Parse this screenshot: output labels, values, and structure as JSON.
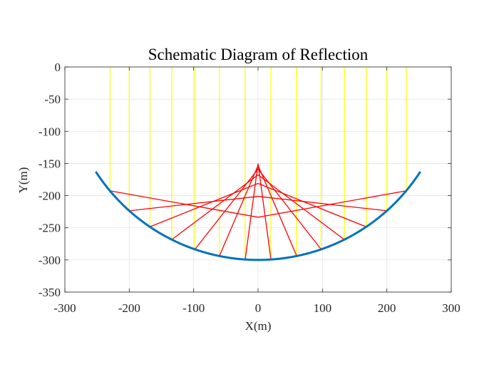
{
  "chart_data": {
    "type": "line",
    "title": "Schematic Diagram of Reflection",
    "xlabel": "X(m)",
    "ylabel": "Y(m)",
    "xlim": [
      -300,
      300
    ],
    "ylim": [
      -350,
      0
    ],
    "xticks": [
      -300,
      -200,
      -100,
      0,
      100,
      200,
      300
    ],
    "yticks": [
      0,
      -50,
      -100,
      -150,
      -200,
      -250,
      -300,
      -350
    ],
    "grid": true,
    "mirror": {
      "shape": "circular-arc",
      "center": [
        0,
        0
      ],
      "radius": 300,
      "x_range": [
        -252,
        252
      ],
      "color": "#0072BD"
    },
    "incident_rays": {
      "color": "#FFFF00",
      "from_y": 0,
      "x": [
        -230,
        -200,
        -168,
        -134,
        -98,
        -60,
        -20,
        20,
        60,
        98,
        134,
        168,
        200,
        230
      ]
    },
    "reflected_rays": {
      "color": "#FF0000",
      "x": [
        -230,
        -200,
        -168,
        -134,
        -98,
        -60,
        -20,
        20,
        60,
        98,
        134,
        168,
        200,
        230
      ]
    }
  }
}
